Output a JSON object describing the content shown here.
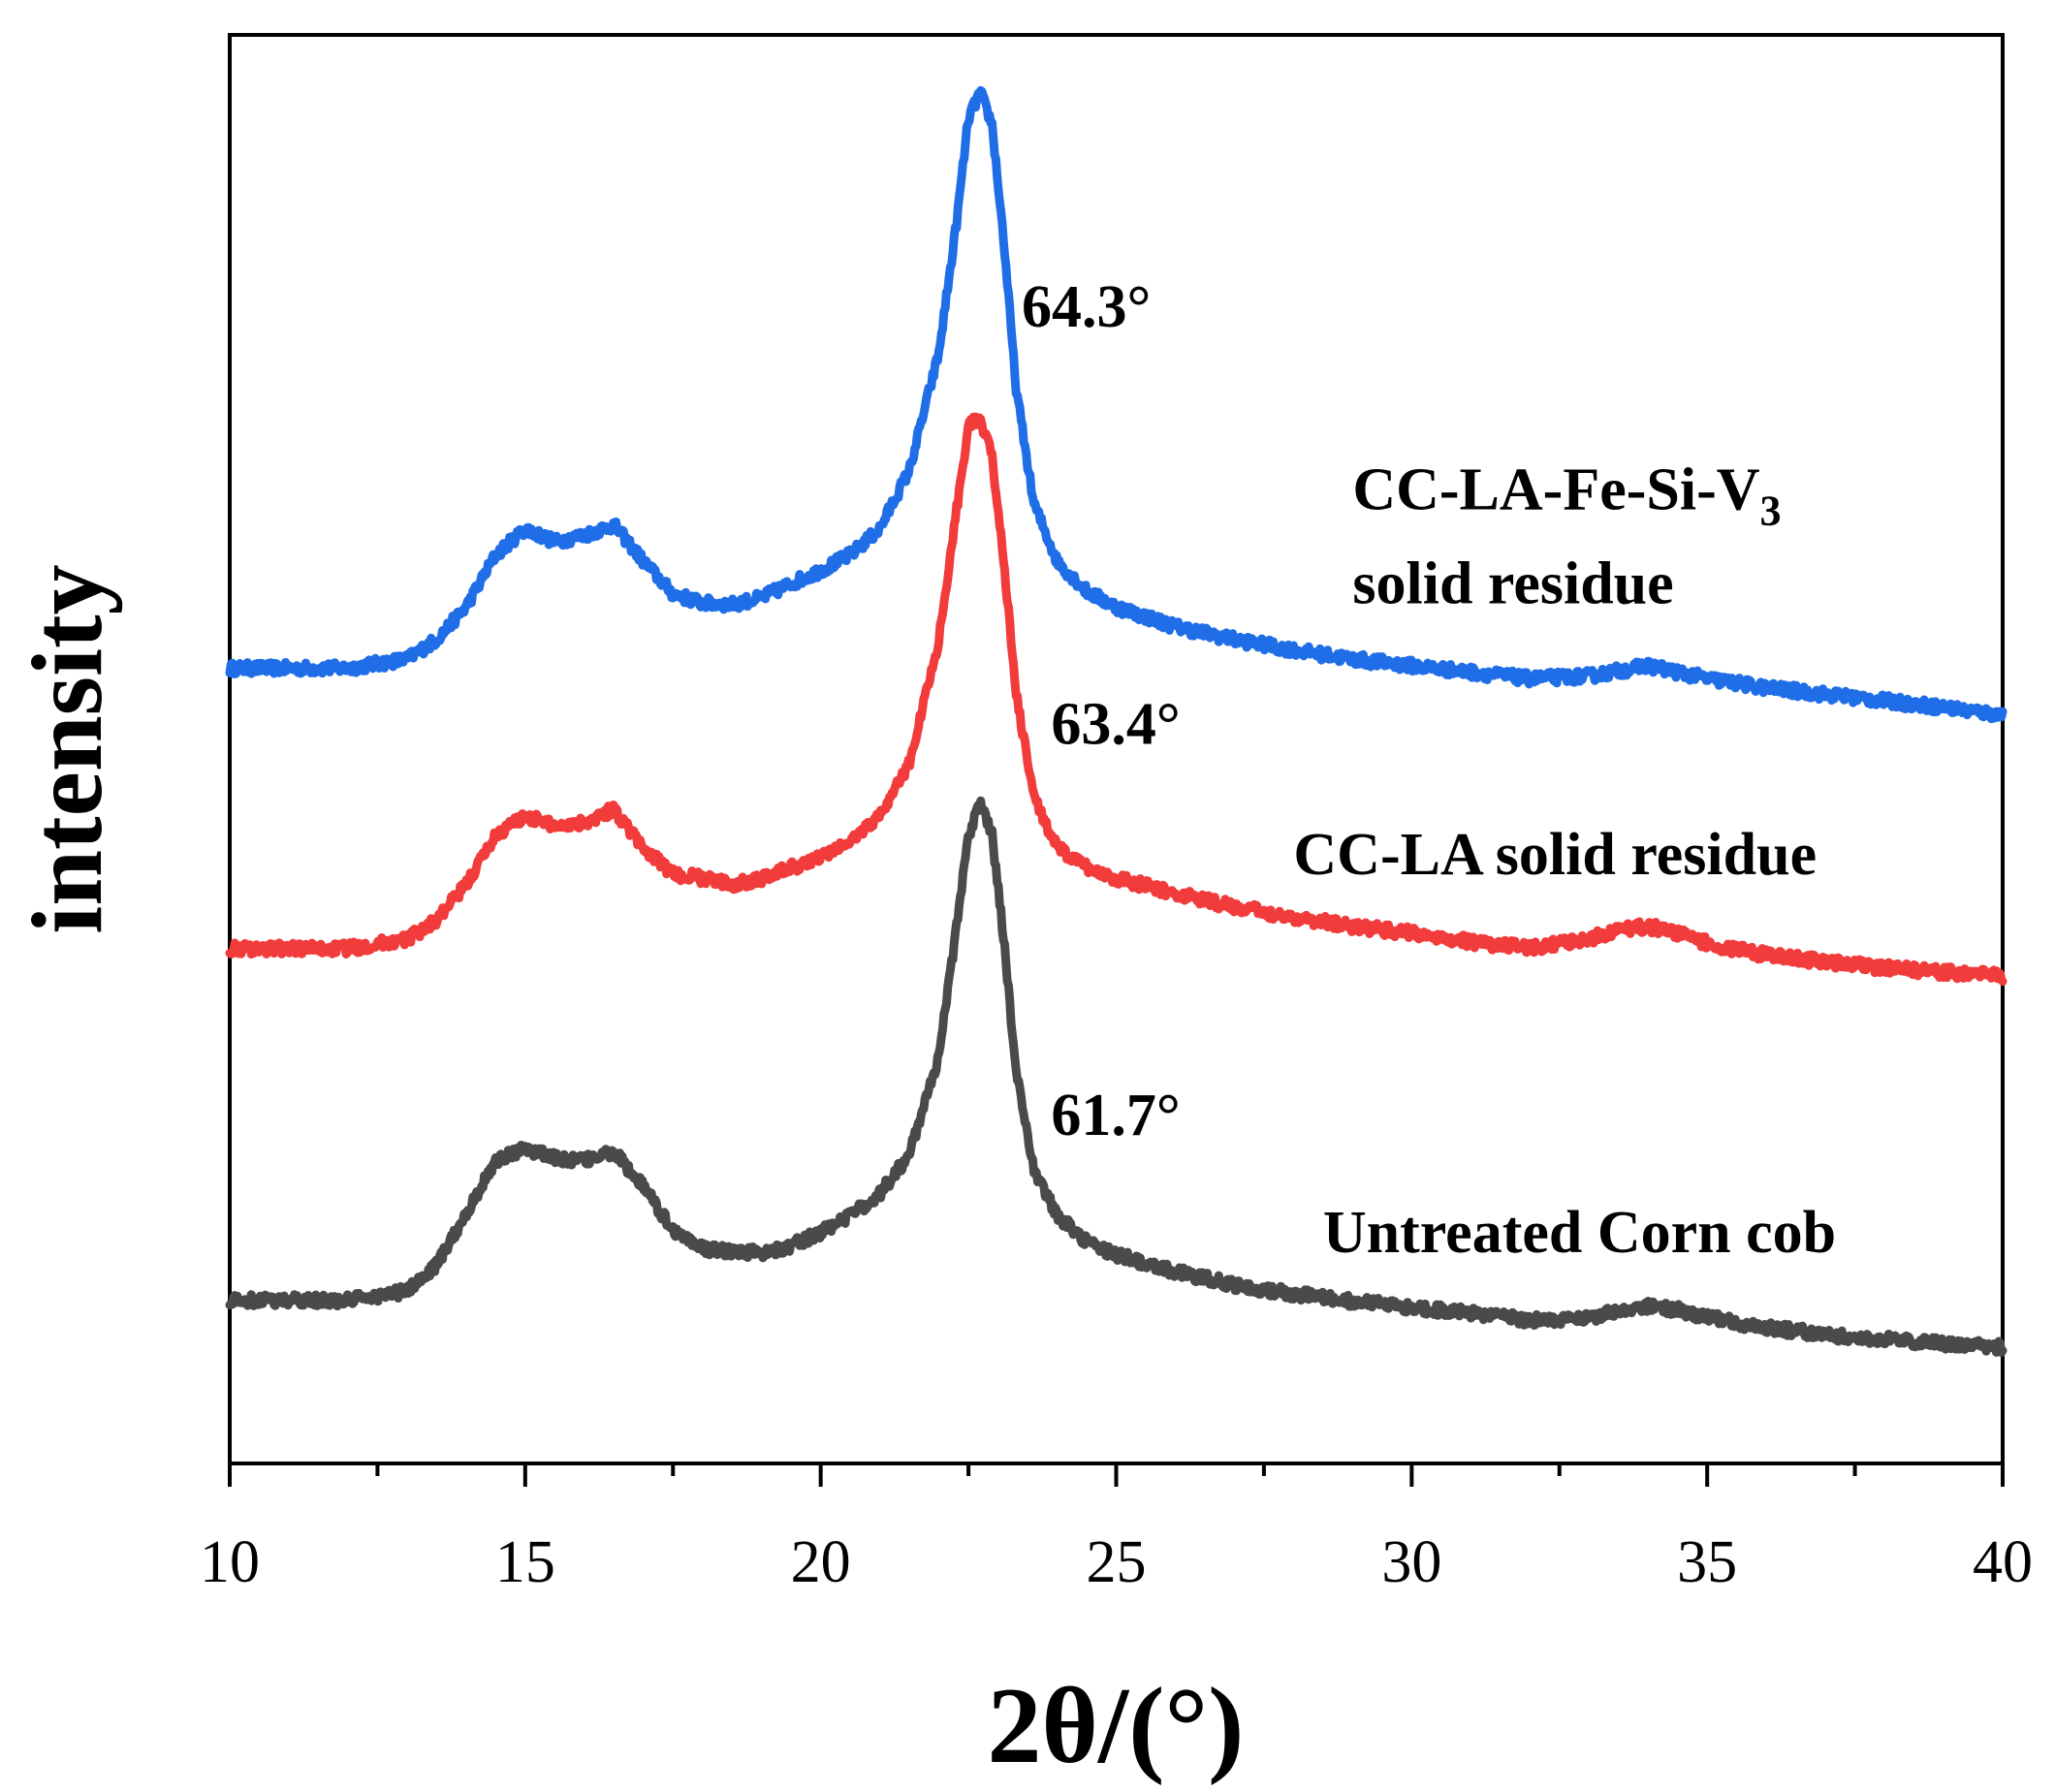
{
  "chart_data": {
    "type": "line",
    "title": "",
    "xlabel": "2θ/(°)",
    "ylabel": "intensity",
    "xlim": [
      10,
      40
    ],
    "ylim": [
      0,
      1
    ],
    "grid": false,
    "legend": "none",
    "x_ticks": [
      10,
      15,
      20,
      25,
      30,
      35,
      40
    ],
    "x_tick_labels": [
      "10",
      "15",
      "20",
      "25",
      "30",
      "35",
      "40"
    ],
    "x_minor_step": 2.5,
    "series": [
      {
        "name": "CC-LA-Fe-Si-V3 solid residue",
        "color": "#1f6ee8",
        "x": [
          10,
          11,
          12,
          13,
          13.5,
          14,
          14.5,
          15,
          15.5,
          16,
          16.5,
          17,
          17.5,
          18,
          18.5,
          19,
          19.5,
          20,
          20.5,
          21,
          21.5,
          22,
          22.3,
          22.5,
          22.7,
          22.9,
          23.1,
          23.3,
          23.6,
          24,
          24.5,
          25,
          26,
          27,
          28,
          29,
          30,
          31,
          32,
          33,
          33.5,
          34,
          34.5,
          35,
          36,
          37,
          38,
          39,
          40
        ],
        "y": [
          0.558,
          0.558,
          0.558,
          0.565,
          0.58,
          0.605,
          0.645,
          0.665,
          0.655,
          0.66,
          0.668,
          0.64,
          0.615,
          0.608,
          0.607,
          0.612,
          0.623,
          0.633,
          0.645,
          0.665,
          0.71,
          0.8,
          0.9,
          0.98,
          1.0,
          0.975,
          0.885,
          0.775,
          0.685,
          0.64,
          0.617,
          0.605,
          0.59,
          0.58,
          0.572,
          0.565,
          0.56,
          0.555,
          0.55,
          0.552,
          0.556,
          0.56,
          0.555,
          0.55,
          0.543,
          0.538,
          0.533,
          0.528,
          0.522
        ]
      },
      {
        "name": "CC-LA solid residue",
        "color": "#f23b3b",
        "x": [
          10,
          11,
          12,
          13,
          13.5,
          14,
          14.5,
          15,
          15.5,
          16,
          16.5,
          17,
          17.5,
          18,
          18.5,
          19,
          19.5,
          20,
          20.5,
          21,
          21.5,
          22,
          22.3,
          22.5,
          22.7,
          22.9,
          23.1,
          23.3,
          23.6,
          24,
          24.5,
          25,
          26,
          27,
          28,
          29,
          30,
          31,
          32,
          33,
          33.5,
          34,
          34.5,
          35,
          36,
          37,
          38,
          39,
          40
        ],
        "y": [
          0.343,
          0.343,
          0.343,
          0.35,
          0.365,
          0.392,
          0.43,
          0.445,
          0.437,
          0.44,
          0.45,
          0.42,
          0.4,
          0.397,
          0.392,
          0.397,
          0.405,
          0.413,
          0.425,
          0.445,
          0.485,
          0.58,
          0.68,
          0.745,
          0.748,
          0.72,
          0.64,
          0.54,
          0.46,
          0.42,
          0.405,
          0.397,
          0.385,
          0.375,
          0.367,
          0.36,
          0.355,
          0.348,
          0.343,
          0.35,
          0.358,
          0.36,
          0.355,
          0.347,
          0.338,
          0.333,
          0.328,
          0.325,
          0.322
        ]
      },
      {
        "name": "Untreated Corn cob",
        "color": "#4a4a4a",
        "x": [
          10,
          11,
          12,
          13,
          13.5,
          14,
          14.5,
          15,
          15.5,
          16,
          16.5,
          17,
          17.5,
          18,
          18.5,
          19,
          19.5,
          20,
          20.5,
          21,
          21.5,
          22,
          22.3,
          22.5,
          22.7,
          22.9,
          23.1,
          23.3,
          23.6,
          24,
          24.5,
          25,
          26,
          27,
          28,
          29,
          30,
          31,
          32,
          33,
          33.5,
          34,
          34.5,
          35,
          36,
          37,
          38,
          39,
          40
        ],
        "y": [
          0.073,
          0.073,
          0.073,
          0.08,
          0.1,
          0.14,
          0.18,
          0.19,
          0.182,
          0.18,
          0.187,
          0.16,
          0.127,
          0.113,
          0.11,
          0.11,
          0.115,
          0.125,
          0.138,
          0.155,
          0.185,
          0.26,
          0.36,
          0.43,
          0.455,
          0.43,
          0.35,
          0.25,
          0.175,
          0.138,
          0.118,
          0.108,
          0.095,
          0.085,
          0.078,
          0.072,
          0.068,
          0.063,
          0.058,
          0.06,
          0.065,
          0.068,
          0.066,
          0.06,
          0.052,
          0.047,
          0.043,
          0.04,
          0.037
        ]
      }
    ],
    "annotations": [
      {
        "text": "64.3°",
        "x": 23.4,
        "y": 0.82
      },
      {
        "text": "63.4°",
        "x": 23.9,
        "y": 0.5
      },
      {
        "text": "61.7°",
        "x": 23.9,
        "y": 0.2
      }
    ],
    "series_labels": [
      {
        "lines": [
          "CC-LA-Fe-Si-V",
          "solid residue"
        ],
        "subscript": "3",
        "x": 29.0,
        "y": 0.68
      },
      {
        "lines": [
          "CC-LA solid residue"
        ],
        "x": 28.0,
        "y": 0.4
      },
      {
        "lines": [
          "Untreated Corn cob"
        ],
        "x": 28.5,
        "y": 0.11
      }
    ]
  }
}
